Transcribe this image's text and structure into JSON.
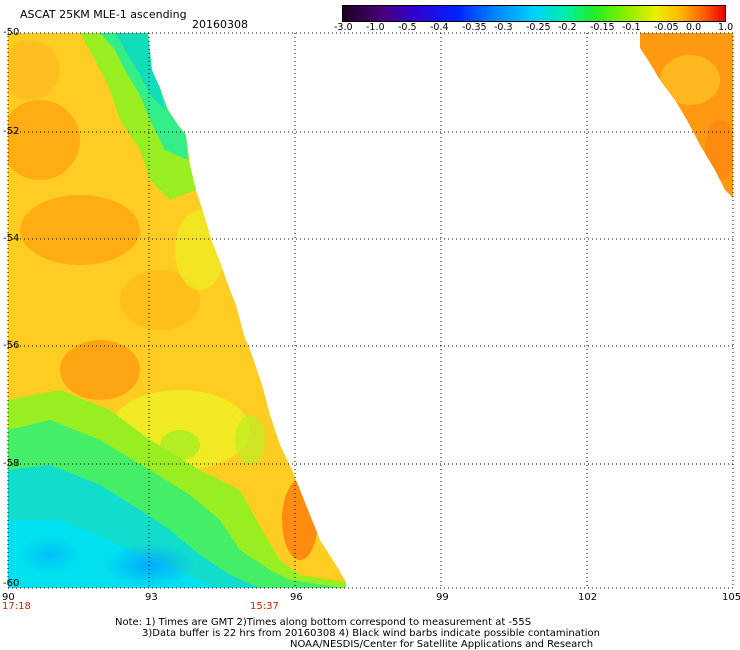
{
  "header": {
    "title": "ASCAT 25KM MLE-1 ascending",
    "date": "20160308"
  },
  "colorbar": {
    "labels": [
      "-3.0",
      "-1.0",
      "-0.5",
      "-0.4",
      "-0.35",
      "-0.3",
      "-0.25",
      "-0.2",
      "-0.15",
      "-0.1",
      "-0.05",
      "0.0",
      "1.0"
    ],
    "colors": [
      "#2a0033",
      "#5a00aa",
      "#1a22ff",
      "#0077ff",
      "#00b4ff",
      "#00e6ee",
      "#00eeaa",
      "#22ee22",
      "#99ee00",
      "#eeee00",
      "#ffcc00",
      "#ff8800",
      "#ee2200"
    ]
  },
  "map": {
    "lat_labels": [
      "-50",
      "-52",
      "-54",
      "-56",
      "-58",
      "-60"
    ],
    "lon_labels": [
      "90",
      "93",
      "96",
      "99",
      "102",
      "105"
    ],
    "time_labels": [
      "17:18",
      "15:37"
    ]
  },
  "footer": {
    "line1": "Note: 1) Times are GMT 2)Times along bottom correspond to measurement at -55S",
    "line2": "3)Data buffer is 22 hrs from 20160308 4) Black wind barbs indicate possible contamination",
    "line3": "NOAA/NESDIS/Center for Satellite Applications and Research"
  }
}
